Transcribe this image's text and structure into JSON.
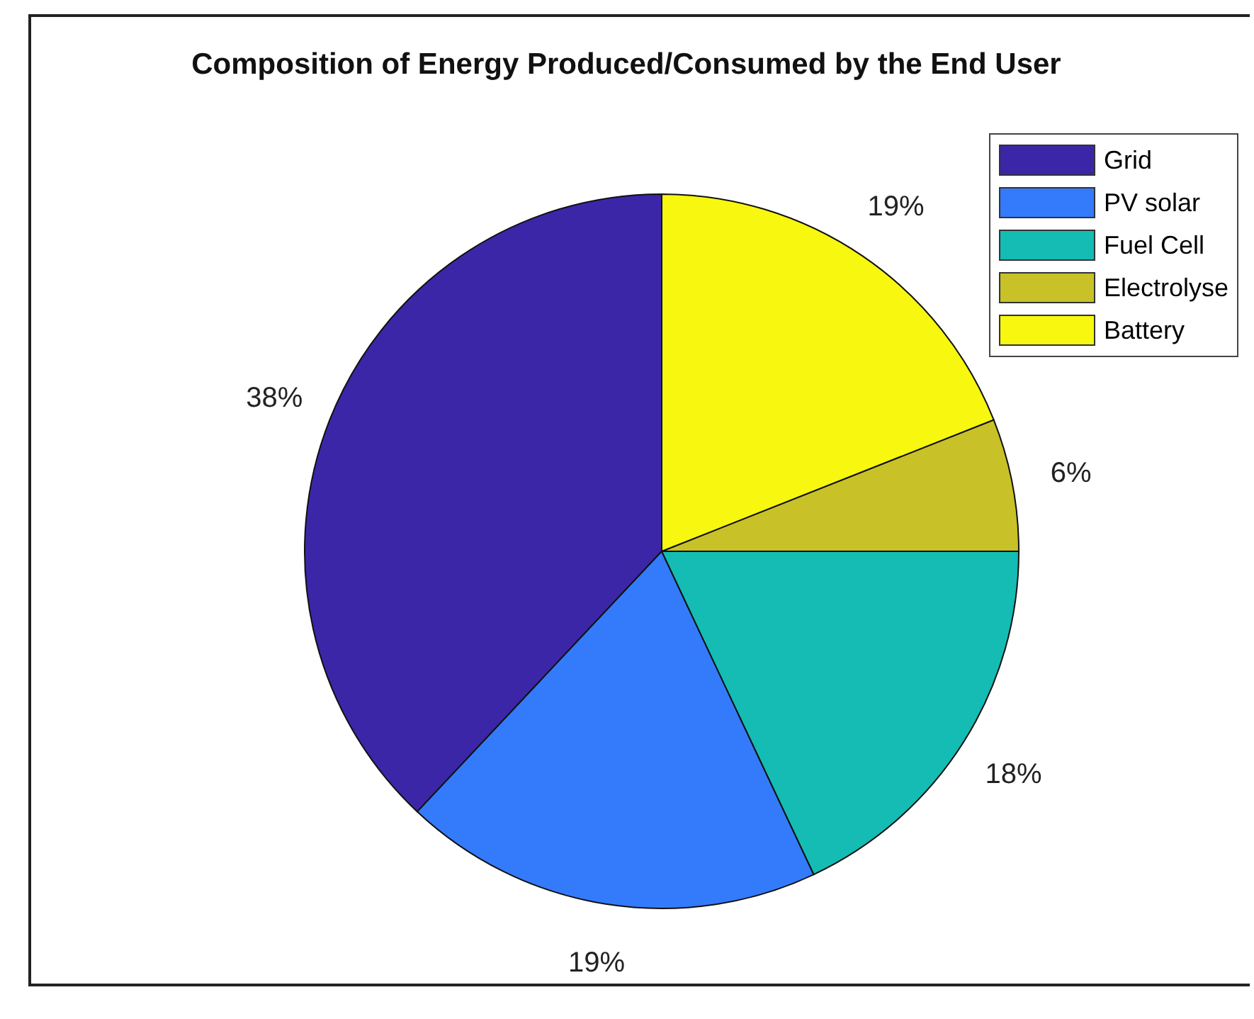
{
  "chart_data": {
    "type": "pie",
    "title": "Composition of Energy Produced/Consumed by the End User",
    "categories": [
      "Grid",
      "PV solar",
      "Fuel Cell",
      "Electrolyse",
      "Battery"
    ],
    "values": [
      38,
      19,
      18,
      6,
      19
    ],
    "colors": [
      "#3c26a8",
      "#347bfb",
      "#14bcb4",
      "#c8c128",
      "#f7f70f"
    ],
    "value_labels": [
      "38%",
      "19%",
      "18%",
      "6%",
      "19%"
    ],
    "legend": "top right"
  }
}
